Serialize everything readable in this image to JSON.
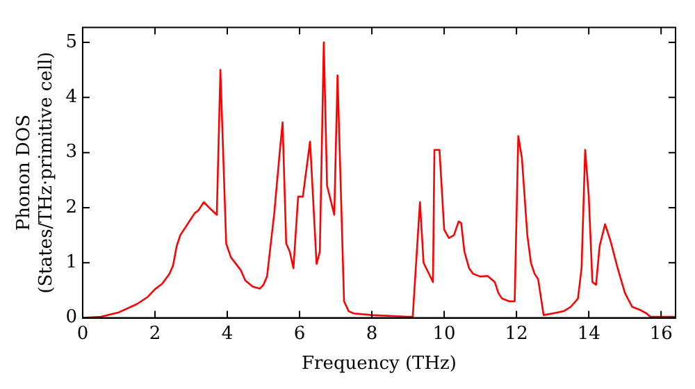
{
  "chart_data": {
    "type": "line",
    "xlabel": "Frequency (THz)",
    "ylabel": "Phonon DOS\n(States/THz·primitive cell)",
    "xlim": [
      0,
      16.4
    ],
    "ylim": [
      0,
      5.27
    ],
    "xticks": [
      0,
      2,
      4,
      6,
      8,
      10,
      12,
      14,
      16
    ],
    "yticks": [
      0,
      1,
      2,
      3,
      4,
      5
    ],
    "grid": false,
    "legend": false,
    "marker": "none",
    "line_style": "solid",
    "series": [
      {
        "color": "#ff0000",
        "x": [
          0,
          0.5,
          1,
          1.5,
          1.8,
          2,
          2.2,
          2.4,
          2.5,
          2.6,
          2.7,
          2.9,
          3.0,
          3.1,
          3.2,
          3.35,
          3.5,
          3.71,
          3.81,
          3.97,
          4.1,
          4.37,
          4.5,
          4.7,
          4.9,
          5.0,
          5.1,
          5.3,
          5.45,
          5.53,
          5.63,
          5.73,
          5.83,
          5.96,
          6.09,
          6.29,
          6.47,
          6.56,
          6.67,
          6.76,
          6.96,
          7.05,
          7.23,
          7.36,
          7.5,
          8,
          9,
          9.13,
          9.33,
          9.43,
          9.69,
          9.73,
          9.87,
          10.0,
          10.13,
          10.27,
          10.4,
          10.47,
          10.56,
          10.69,
          10.8,
          11.0,
          11.2,
          11.4,
          11.5,
          11.6,
          11.8,
          11.95,
          12.05,
          12.15,
          12.3,
          12.4,
          12.5,
          12.6,
          12.75,
          13.0,
          13.3,
          13.5,
          13.7,
          13.8,
          13.9,
          14.0,
          14.1,
          14.2,
          14.3,
          14.45,
          14.6,
          14.8,
          15.0,
          15.2,
          15.4,
          15.6,
          15.7,
          16.4
        ],
        "values": [
          0,
          0.02,
          0.1,
          0.25,
          0.38,
          0.52,
          0.62,
          0.8,
          0.95,
          1.3,
          1.5,
          1.7,
          1.8,
          1.9,
          1.95,
          2.1,
          2.0,
          1.87,
          4.5,
          1.35,
          1.1,
          0.87,
          0.68,
          0.57,
          0.53,
          0.6,
          0.75,
          1.9,
          3.0,
          3.55,
          1.35,
          1.2,
          0.9,
          2.2,
          2.2,
          3.2,
          0.98,
          1.2,
          5.0,
          2.4,
          1.87,
          4.4,
          0.3,
          0.12,
          0.08,
          0.05,
          0.02,
          0.02,
          2.1,
          1.0,
          0.65,
          3.05,
          3.05,
          1.6,
          1.45,
          1.5,
          1.75,
          1.72,
          1.2,
          0.9,
          0.8,
          0.75,
          0.76,
          0.65,
          0.45,
          0.35,
          0.3,
          0.3,
          3.3,
          2.9,
          1.5,
          1.0,
          0.8,
          0.7,
          0.05,
          0.08,
          0.12,
          0.2,
          0.35,
          0.9,
          3.05,
          2.2,
          0.65,
          0.6,
          1.3,
          1.7,
          1.4,
          0.9,
          0.45,
          0.2,
          0.15,
          0.08,
          0.02,
          0.02
        ]
      }
    ]
  }
}
